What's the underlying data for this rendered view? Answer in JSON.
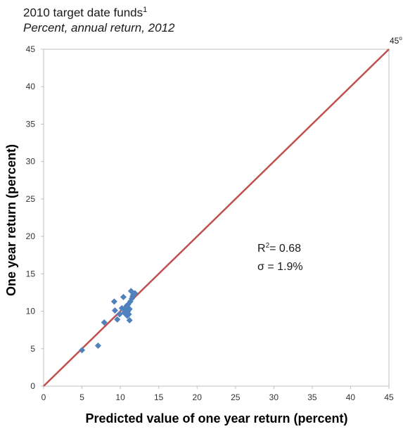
{
  "chart_data": {
    "type": "scatter",
    "title": "2010 target date funds",
    "title_footnote": "1",
    "subtitle": "Percent, annual return, 2012",
    "xlabel": "Predicted value of one year return (percent)",
    "ylabel": "One year return (percent)",
    "xlim": [
      0,
      45
    ],
    "ylim": [
      0,
      45
    ],
    "xticks": [
      "0",
      "5",
      "10",
      "15",
      "20",
      "25",
      "30",
      "35",
      "40",
      "45"
    ],
    "yticks": [
      "0",
      "5",
      "10",
      "15",
      "20",
      "25",
      "30",
      "35",
      "40",
      "45"
    ],
    "grid": false,
    "reference_line": {
      "label": "45",
      "label_sup": "o",
      "from": [
        0,
        0
      ],
      "to": [
        45,
        45
      ],
      "color": "#c0504d"
    },
    "annotations": {
      "r2_prefix": "R",
      "r2_sup": "2",
      "r2_value": "= 0.68",
      "sigma": "σ = 1.9%"
    },
    "marker_color": "#4f81bd",
    "points": [
      {
        "x": 5.0,
        "y": 4.8
      },
      {
        "x": 7.1,
        "y": 5.4
      },
      {
        "x": 7.9,
        "y": 8.5
      },
      {
        "x": 9.2,
        "y": 11.3
      },
      {
        "x": 9.3,
        "y": 10.1
      },
      {
        "x": 9.6,
        "y": 8.9
      },
      {
        "x": 9.9,
        "y": 9.6
      },
      {
        "x": 10.2,
        "y": 10.4
      },
      {
        "x": 10.4,
        "y": 11.9
      },
      {
        "x": 10.5,
        "y": 9.8
      },
      {
        "x": 10.6,
        "y": 10.2
      },
      {
        "x": 10.8,
        "y": 10.7
      },
      {
        "x": 10.9,
        "y": 9.4
      },
      {
        "x": 11.0,
        "y": 10.0
      },
      {
        "x": 11.0,
        "y": 10.9
      },
      {
        "x": 11.1,
        "y": 9.6
      },
      {
        "x": 11.2,
        "y": 8.8
      },
      {
        "x": 11.2,
        "y": 10.3
      },
      {
        "x": 11.3,
        "y": 11.3
      },
      {
        "x": 11.4,
        "y": 12.7
      },
      {
        "x": 11.5,
        "y": 11.7
      },
      {
        "x": 11.6,
        "y": 12.0
      },
      {
        "x": 11.7,
        "y": 12.2
      },
      {
        "x": 11.9,
        "y": 12.4
      }
    ]
  }
}
